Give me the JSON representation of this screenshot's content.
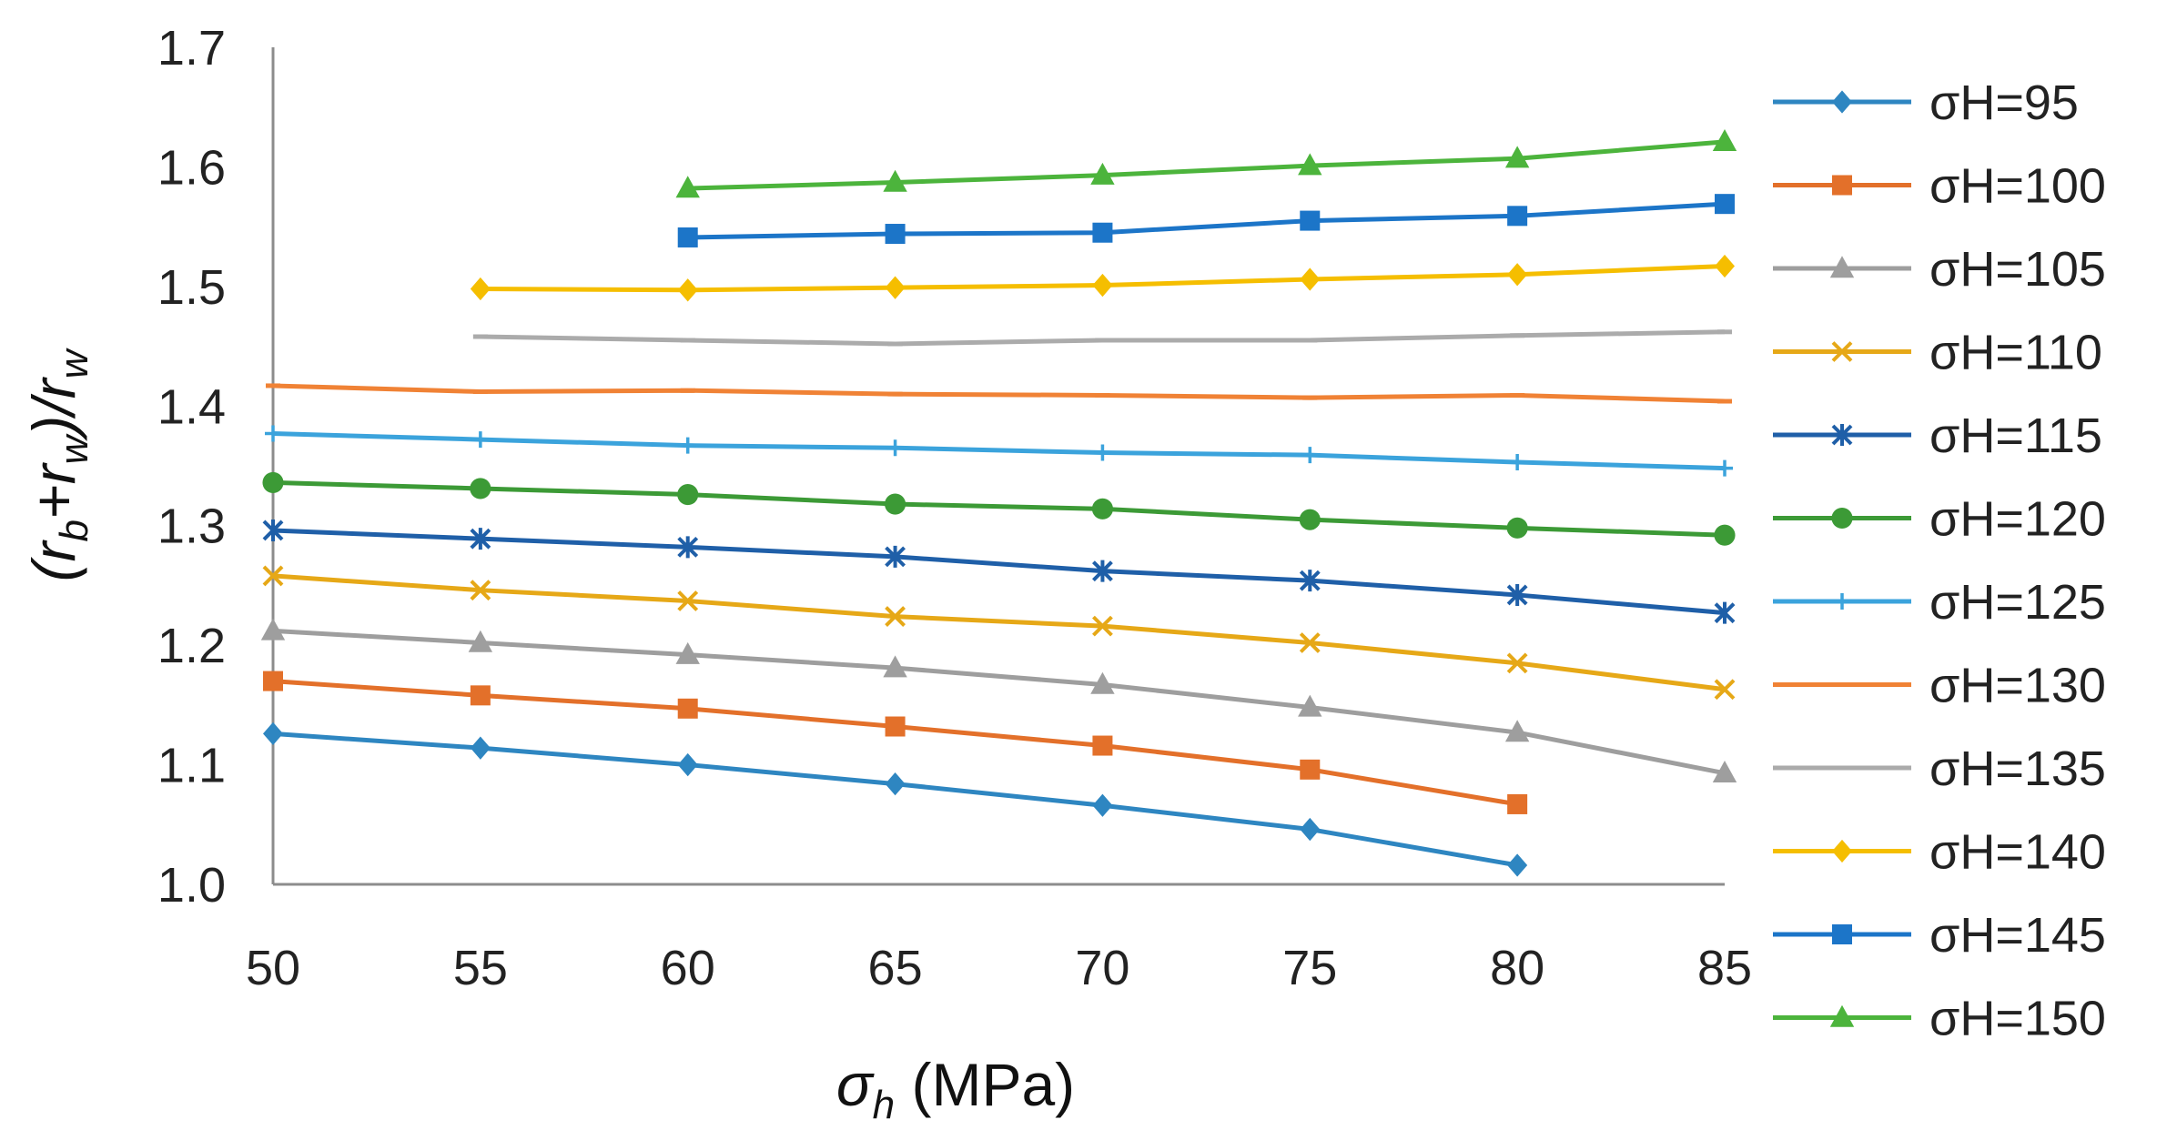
{
  "chart_data": {
    "type": "line",
    "title": "",
    "xlabel_symbol": "σ",
    "xlabel_sub": "h",
    "xlabel_unit": "(MPa)",
    "ylabel_parts": [
      "(r",
      "b",
      "+r",
      "w",
      ")/r",
      "w"
    ],
    "x": [
      50,
      55,
      60,
      65,
      70,
      75,
      80,
      85
    ],
    "xlim": [
      50,
      85
    ],
    "ylim": [
      1.0,
      1.7
    ],
    "x_ticks": [
      "50",
      "55",
      "60",
      "65",
      "70",
      "75",
      "80",
      "85"
    ],
    "y_ticks": [
      "1.0",
      "1.1",
      "1.2",
      "1.3",
      "1.4",
      "1.5",
      "1.6",
      "1.7"
    ],
    "legend_position": "right",
    "grid": false,
    "series": [
      {
        "name": "σH=95",
        "color": "#2E86C1",
        "marker": "diamond",
        "values": [
          1.126,
          1.114,
          1.1,
          1.084,
          1.066,
          1.046,
          1.016,
          null
        ]
      },
      {
        "name": "σH=100",
        "color": "#E3702A",
        "marker": "square",
        "values": [
          1.17,
          1.158,
          1.147,
          1.132,
          1.116,
          1.096,
          1.067,
          null
        ]
      },
      {
        "name": "σH=105",
        "color": "#9E9E9E",
        "marker": "triangle",
        "values": [
          1.212,
          1.202,
          1.192,
          1.181,
          1.167,
          1.148,
          1.127,
          1.093
        ]
      },
      {
        "name": "σH=110",
        "color": "#E6A817",
        "marker": "x",
        "values": [
          1.258,
          1.246,
          1.237,
          1.224,
          1.216,
          1.202,
          1.185,
          1.163
        ]
      },
      {
        "name": "σH=115",
        "color": "#1F5FA8",
        "marker": "star",
        "values": [
          1.296,
          1.289,
          1.282,
          1.274,
          1.262,
          1.254,
          1.242,
          1.227
        ]
      },
      {
        "name": "σH=120",
        "color": "#3C9A36",
        "marker": "circle",
        "values": [
          1.336,
          1.331,
          1.326,
          1.318,
          1.314,
          1.305,
          1.298,
          1.292
        ]
      },
      {
        "name": "σH=125",
        "color": "#3BA3DC",
        "marker": "plus",
        "values": [
          1.377,
          1.372,
          1.367,
          1.365,
          1.361,
          1.359,
          1.353,
          1.348
        ]
      },
      {
        "name": "σH=130",
        "color": "#F08235",
        "marker": "dash",
        "values": [
          1.417,
          1.412,
          1.413,
          1.41,
          1.409,
          1.407,
          1.409,
          1.404
        ]
      },
      {
        "name": "σH=135",
        "color": "#ABABAB",
        "marker": "dash",
        "values": [
          null,
          1.458,
          1.455,
          1.452,
          1.455,
          1.455,
          1.459,
          1.462
        ]
      },
      {
        "name": "σH=140",
        "color": "#F5BE00",
        "marker": "diamond",
        "values": [
          null,
          1.498,
          1.497,
          1.499,
          1.501,
          1.506,
          1.51,
          1.517
        ]
      },
      {
        "name": "σH=145",
        "color": "#1C75C8",
        "marker": "square",
        "values": [
          null,
          null,
          1.541,
          1.544,
          1.545,
          1.555,
          1.559,
          1.569
        ]
      },
      {
        "name": "σH=150",
        "color": "#4CB43C",
        "marker": "triangle",
        "values": [
          null,
          null,
          1.582,
          1.587,
          1.593,
          1.601,
          1.607,
          1.621
        ]
      }
    ]
  }
}
